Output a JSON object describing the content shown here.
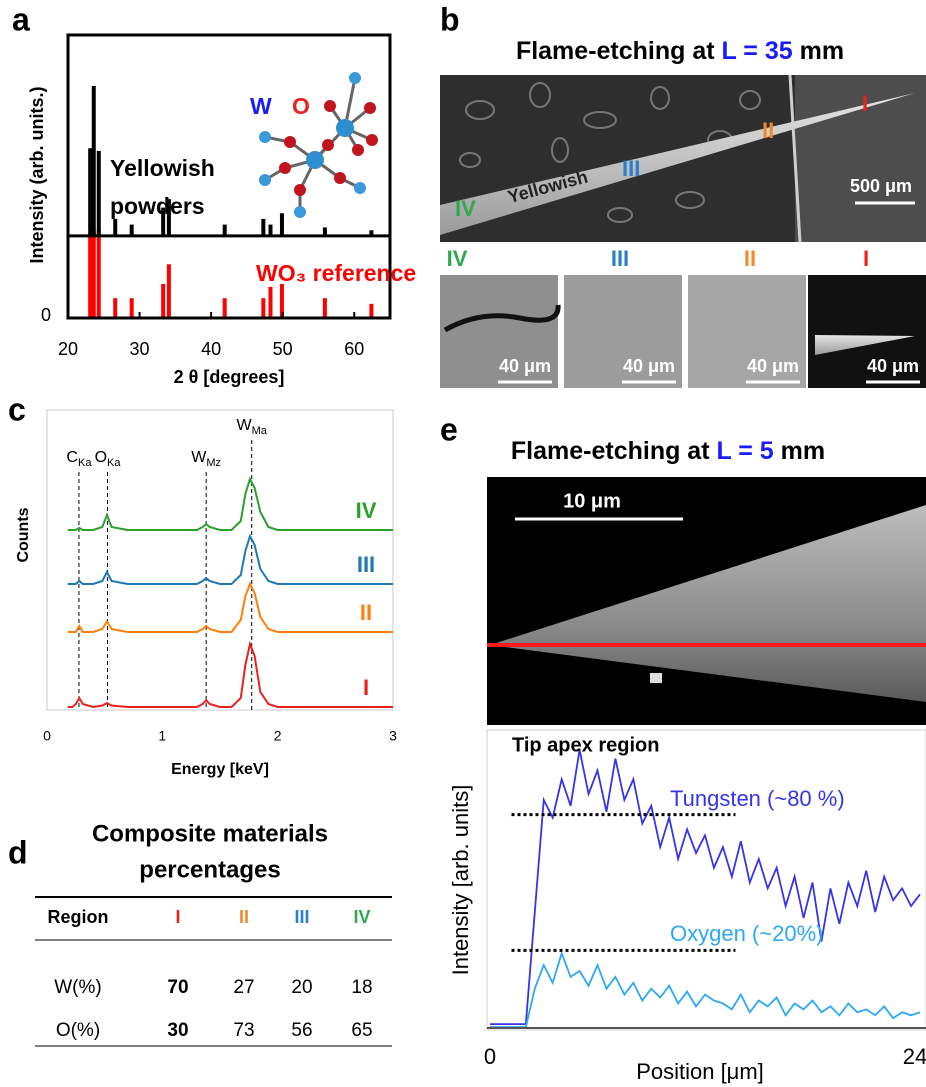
{
  "panel_labels": [
    "a",
    "b",
    "c",
    "d",
    "e"
  ],
  "chart_data": [
    {
      "type": "stick",
      "xlabel": "2 θ [degrees]",
      "ylabel": "Intensity (arb. units.)",
      "xlim": [
        20,
        65
      ],
      "xticks": [
        20,
        30,
        40,
        50,
        60
      ],
      "ylim": [
        0,
        100
      ],
      "yticks": [
        0
      ],
      "atom_labels": [
        {
          "text": "W",
          "color": "#1a1aff"
        },
        {
          "text": "O",
          "color": "#e8221f"
        }
      ],
      "x": [
        23.1,
        23.6,
        24.3,
        26.6,
        28.9,
        33.3,
        34.1,
        41.9,
        47.3,
        48.3,
        49.9,
        55.9,
        62.4
      ],
      "series": [
        {
          "name": "Yellowish powders",
          "color": "#000000",
          "baseline": 29,
          "values": [
            60,
            82,
            59,
            35,
            33,
            39,
            42,
            33,
            35,
            33,
            37,
            32,
            31
          ]
        },
        {
          "name": "WO₃ reference",
          "color": "#ff0000",
          "baseline": 0,
          "values": [
            29,
            31,
            31,
            7,
            7,
            12,
            19,
            7,
            7,
            11,
            12,
            7,
            5
          ]
        }
      ]
    },
    {
      "type": "line",
      "xlabel": "Energy [keV]",
      "ylabel": "Counts",
      "xlim": [
        0,
        3
      ],
      "xticks": [
        0,
        1,
        2,
        3
      ],
      "ylim": [
        0,
        100
      ],
      "markers": [
        {
          "main": "C",
          "sub": "Ka",
          "value": 0.277
        },
        {
          "main": "O",
          "sub": "Ka",
          "value": 0.525
        },
        {
          "main": "W",
          "sub": "Mz",
          "value": 1.38
        },
        {
          "main": "W",
          "sub": "Ma",
          "value": 1.775
        }
      ],
      "x": [
        0.18,
        0.2,
        0.22,
        0.25,
        0.28,
        0.31,
        0.4,
        0.48,
        0.52,
        0.56,
        0.7,
        0.9,
        1.1,
        1.3,
        1.35,
        1.38,
        1.41,
        1.5,
        1.6,
        1.68,
        1.72,
        1.76,
        1.8,
        1.85,
        1.92,
        2.0,
        2.2,
        2.5,
        2.8,
        3.0
      ],
      "series": [
        {
          "name": "IV",
          "color": "#2ca02c",
          "values": [
            60,
            60,
            60,
            60,
            60.7,
            60,
            60,
            61,
            65,
            61,
            60,
            60,
            60,
            60,
            61,
            62,
            61,
            60,
            60,
            63,
            72,
            77,
            74,
            66,
            61,
            60,
            60,
            60,
            60,
            60
          ]
        },
        {
          "name": "III",
          "color": "#1f77b4",
          "values": [
            42,
            42,
            42,
            42,
            43,
            42,
            42,
            43,
            46,
            43,
            42,
            42,
            42,
            42,
            43,
            44,
            43,
            42,
            42,
            45,
            53,
            58,
            55,
            47,
            43,
            42,
            42,
            42,
            42,
            42
          ]
        },
        {
          "name": "II",
          "color": "#ff7f0e",
          "values": [
            26,
            26,
            26,
            26,
            28,
            26,
            26,
            27,
            29.5,
            27,
            26,
            26,
            26,
            26,
            27,
            28,
            27,
            26,
            26,
            30,
            38,
            42,
            39,
            31,
            27,
            26,
            26,
            26,
            26,
            26
          ]
        },
        {
          "name": "I",
          "color": "#e8221f",
          "values": [
            1,
            1,
            1,
            2,
            4,
            2,
            1,
            1.5,
            2.3,
            1.5,
            1,
            1,
            1,
            1,
            2,
            3.3,
            2,
            1,
            1,
            4,
            15,
            22,
            18,
            6,
            2,
            1,
            1,
            1,
            1,
            1
          ]
        }
      ]
    },
    {
      "type": "line",
      "title": "Tip apex region",
      "xlabel": "Position [μm]",
      "ylabel": "Intensity [arb. units]",
      "xlim": [
        0,
        24
      ],
      "xticks": [
        0,
        24
      ],
      "ylim": [
        0,
        100
      ],
      "reference_levels": [
        {
          "value": 73,
          "from": 1.2,
          "to": 13.7
        },
        {
          "value": 27,
          "from": 1.2,
          "to": 13.7
        }
      ],
      "x": [
        0,
        0.5,
        1,
        1.5,
        2,
        2.5,
        3,
        3.5,
        4,
        4.5,
        5,
        5.5,
        6,
        6.5,
        7,
        7.5,
        8,
        8.5,
        9,
        9.5,
        10,
        10.5,
        11,
        11.5,
        12,
        12.5,
        13,
        13.5,
        14,
        14.5,
        15,
        15.5,
        16,
        16.5,
        17,
        17.5,
        18,
        18.5,
        19,
        19.5,
        20,
        20.5,
        21,
        21.5,
        22,
        22.5,
        23,
        23.5,
        24
      ],
      "series": [
        {
          "name": "Tungsten (~80 %)",
          "color": "#3535e6",
          "values": [
            2,
            2,
            2,
            2,
            2,
            40,
            78,
            72,
            85,
            76,
            95,
            80,
            88,
            74,
            92,
            78,
            85,
            70,
            76,
            62,
            72,
            58,
            68,
            60,
            66,
            55,
            62,
            52,
            64,
            50,
            58,
            48,
            55,
            42,
            52,
            38,
            50,
            30,
            48,
            36,
            50,
            42,
            54,
            40,
            52,
            44,
            48,
            42,
            46
          ]
        },
        {
          "name": "Oxygen (~20%)",
          "color": "#2ea8f5",
          "values": [
            1,
            1,
            1,
            1,
            1,
            14,
            22,
            16,
            26,
            18,
            20,
            15,
            22,
            14,
            18,
            12,
            16,
            10,
            14,
            11,
            15,
            9,
            13,
            8,
            12,
            10,
            9,
            7,
            12,
            6,
            10,
            8,
            11,
            5,
            9,
            7,
            10,
            6,
            8,
            5,
            9,
            6,
            7,
            5,
            8,
            4,
            6,
            5,
            6
          ]
        }
      ]
    }
  ],
  "panel_b": {
    "title": {
      "prefix": "Flame-etching at ",
      "highlight": "L = 35",
      "suffix": " mm"
    },
    "regions": [
      {
        "name": "I",
        "color": "#e8221f"
      },
      {
        "name": "II",
        "color": "#f08a2c"
      },
      {
        "name": "III",
        "color": "#2b7fc8"
      },
      {
        "name": "IV",
        "color": "#2fa84f"
      }
    ],
    "annotation": "Yellowish",
    "scale_bar": "500 μm",
    "zoom": [
      {
        "region": "IV",
        "scale_bar": "40 μm"
      },
      {
        "region": "III",
        "scale_bar": "40 μm"
      },
      {
        "region": "II",
        "scale_bar": "40 μm"
      },
      {
        "region": "I",
        "scale_bar": "40 μm"
      }
    ]
  },
  "panel_d": {
    "title_lines": [
      "Composite materials",
      "percentages"
    ],
    "header_colors": [
      "#000000",
      "#e8221f",
      "#f08a2c",
      "#2b7fc8",
      "#2fa84f"
    ],
    "table": {
      "header": [
        "Region",
        "I",
        "II",
        "III",
        "IV"
      ],
      "rows": [
        [
          "W(%)",
          70,
          27,
          20,
          18
        ],
        [
          "O(%)",
          30,
          73,
          56,
          65
        ]
      ]
    }
  },
  "panel_e": {
    "title": {
      "prefix": "Flame-etching at ",
      "highlight": "L = 5",
      "suffix": " mm"
    },
    "scale_bar": "10 μm"
  }
}
